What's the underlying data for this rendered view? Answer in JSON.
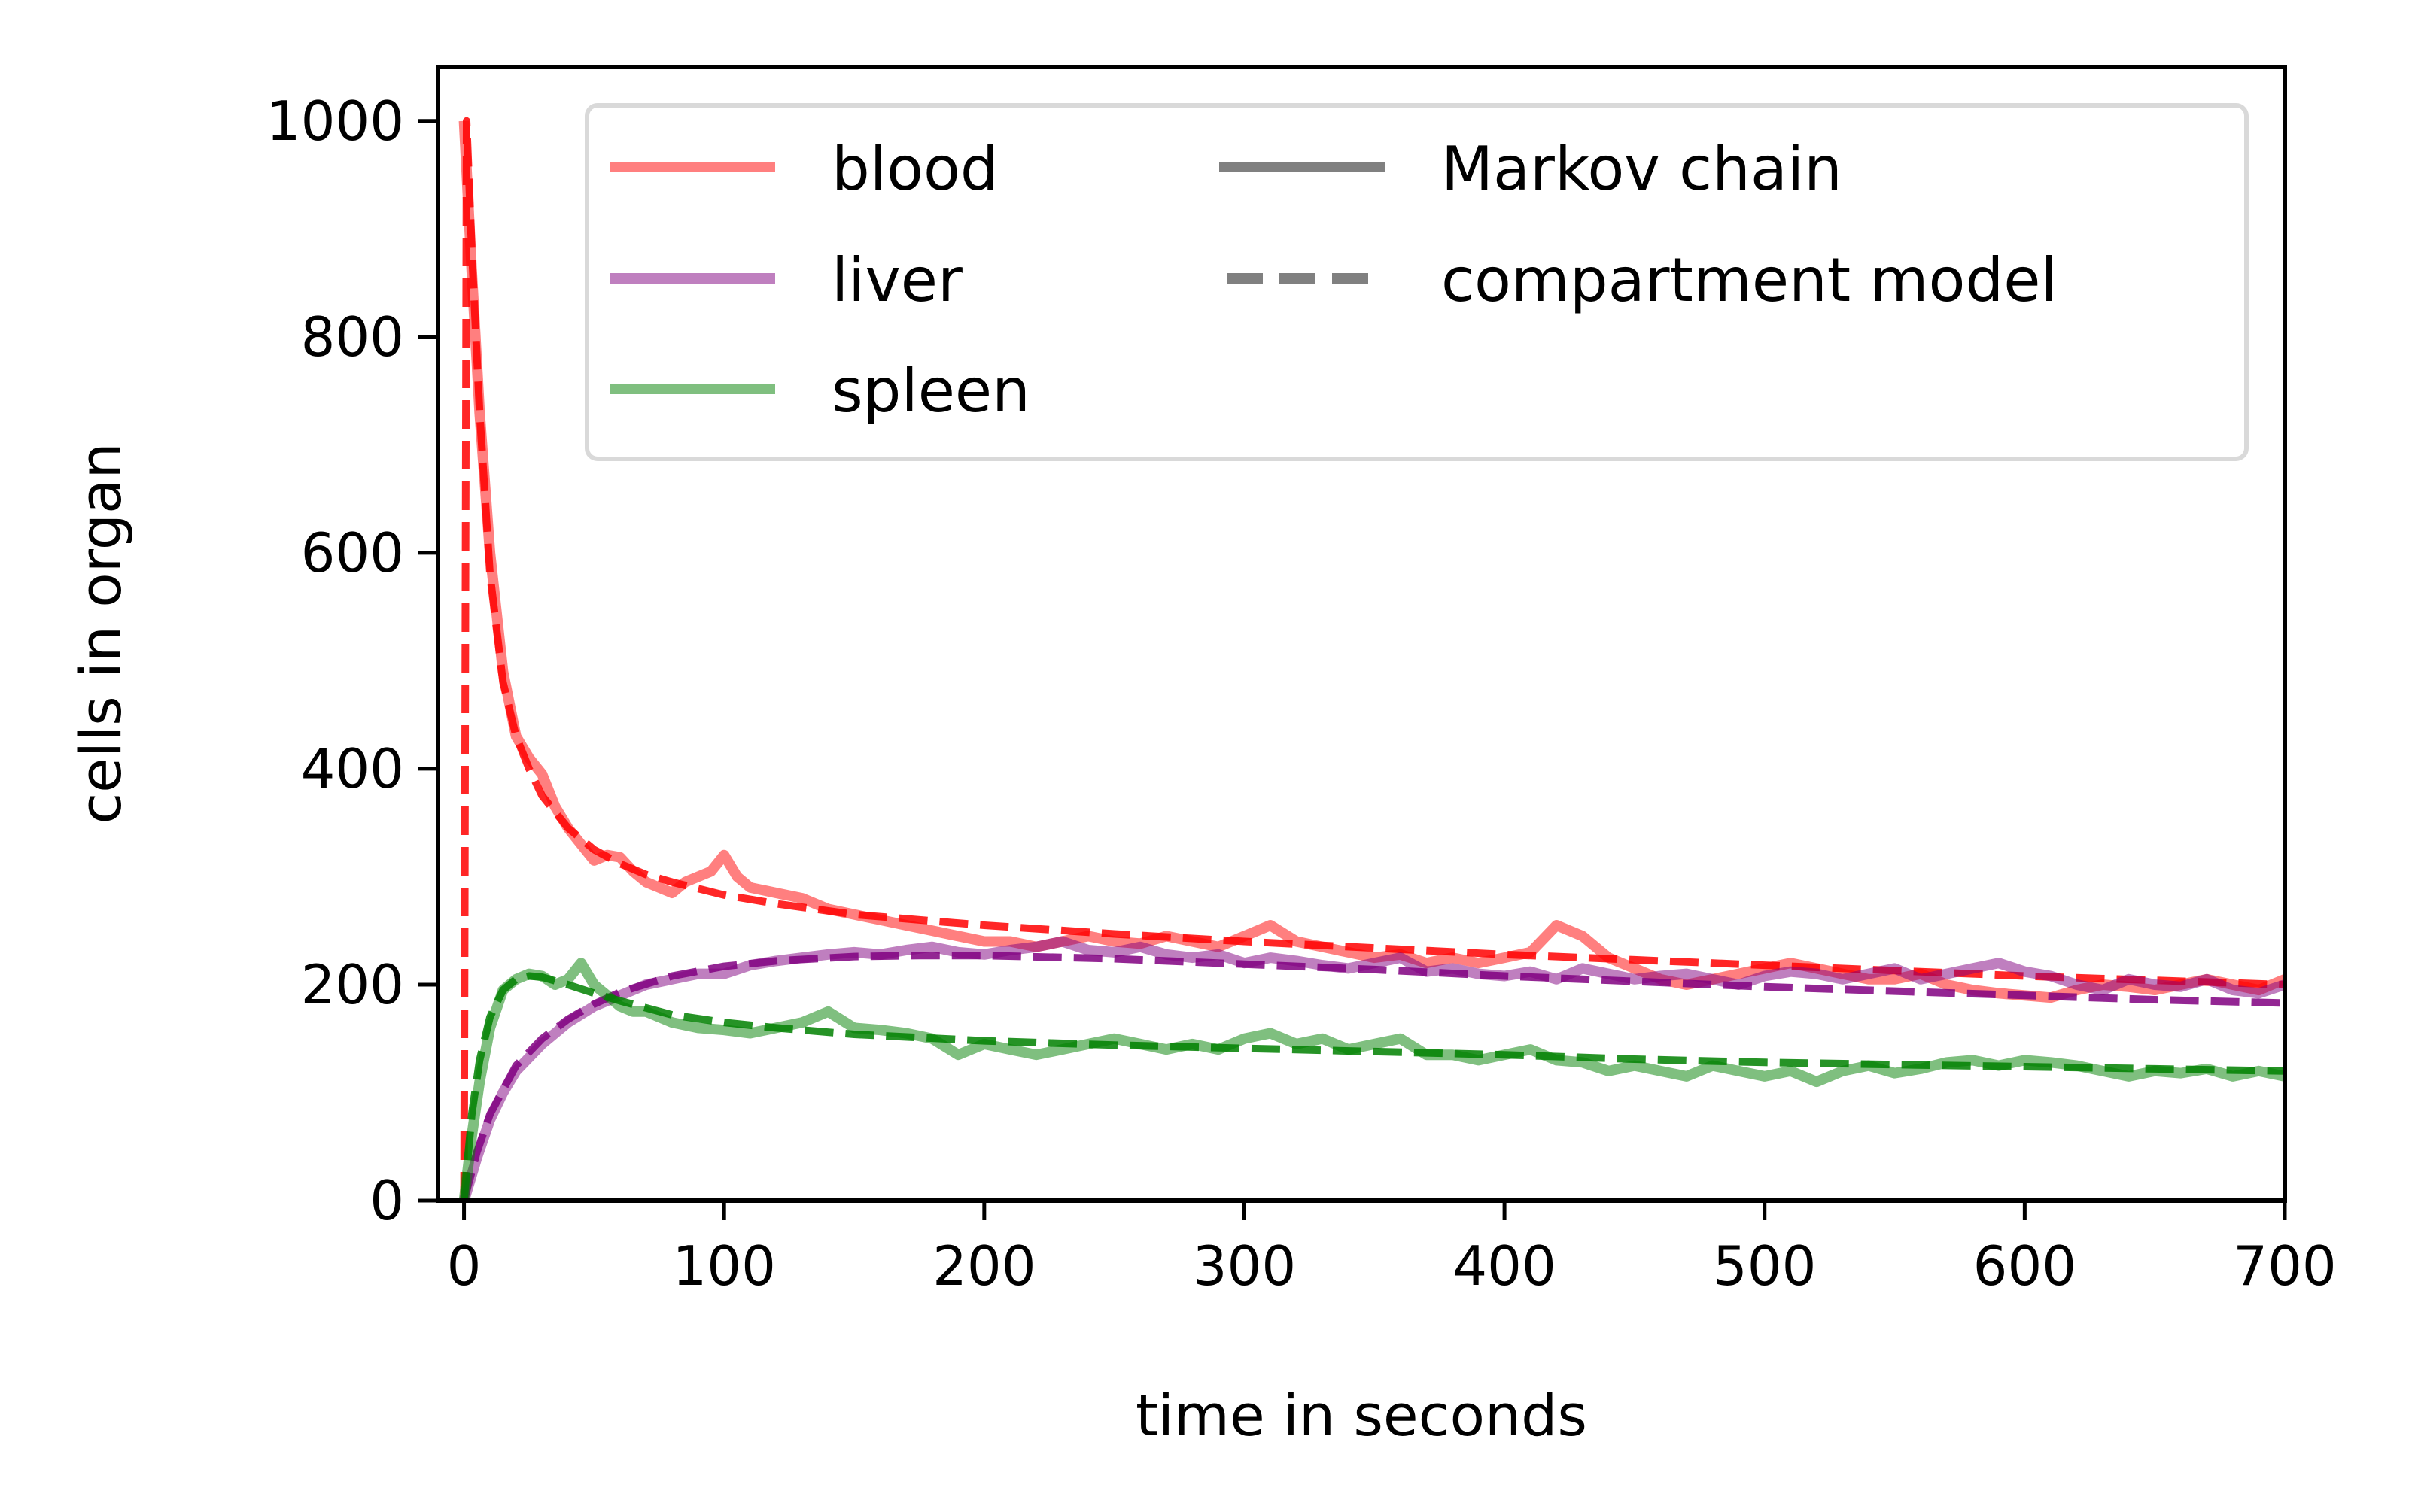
{
  "chart_data": {
    "type": "line",
    "title": "",
    "xlabel": "time in seconds",
    "ylabel": "cells in organ",
    "xlim": [
      -10,
      700
    ],
    "ylim": [
      0,
      1050
    ],
    "xticks": [
      0,
      100,
      200,
      300,
      400,
      500,
      600,
      700
    ],
    "yticks": [
      0,
      200,
      400,
      600,
      800,
      1000
    ],
    "legend_position": "top",
    "series": [
      {
        "name": "blood",
        "kind": "Markov chain",
        "style": "solid",
        "color": "#ff0000",
        "alpha": 0.5,
        "x": [
          0,
          3,
          6,
          10,
          15,
          20,
          25,
          30,
          35,
          40,
          45,
          50,
          55,
          60,
          65,
          70,
          75,
          80,
          85,
          90,
          95,
          100,
          105,
          110,
          120,
          130,
          140,
          150,
          160,
          170,
          180,
          190,
          200,
          210,
          220,
          230,
          240,
          250,
          260,
          270,
          280,
          290,
          300,
          310,
          320,
          330,
          340,
          350,
          360,
          370,
          380,
          390,
          400,
          410,
          420,
          425,
          430,
          440,
          450,
          460,
          470,
          480,
          490,
          500,
          510,
          520,
          530,
          540,
          550,
          560,
          570,
          580,
          590,
          600,
          610,
          620,
          630,
          640,
          650,
          660,
          670,
          680,
          690,
          700
        ],
        "y": [
          1000,
          860,
          730,
          600,
          490,
          430,
          410,
          395,
          365,
          345,
          330,
          315,
          320,
          318,
          305,
          295,
          290,
          285,
          295,
          300,
          305,
          320,
          300,
          290,
          285,
          280,
          270,
          265,
          260,
          255,
          250,
          245,
          240,
          240,
          235,
          240,
          245,
          240,
          238,
          245,
          240,
          235,
          245,
          255,
          240,
          235,
          230,
          225,
          228,
          220,
          225,
          220,
          225,
          230,
          255,
          250,
          245,
          225,
          215,
          205,
          200,
          205,
          210,
          215,
          220,
          215,
          210,
          205,
          205,
          210,
          200,
          195,
          192,
          190,
          188,
          195,
          200,
          198,
          195,
          200,
          205,
          200,
          195,
          205
        ]
      },
      {
        "name": "blood",
        "kind": "compartment model",
        "style": "dashed",
        "color": "#ff0000",
        "alpha": 0.85,
        "x": [
          0,
          1,
          3,
          6,
          10,
          15,
          20,
          25,
          30,
          40,
          50,
          60,
          70,
          80,
          100,
          120,
          150,
          200,
          250,
          300,
          350,
          400,
          450,
          500,
          550,
          600,
          650,
          700
        ],
        "y": [
          0,
          1000,
          880,
          730,
          580,
          480,
          430,
          400,
          375,
          345,
          325,
          312,
          302,
          295,
          283,
          275,
          265,
          255,
          247,
          240,
          234,
          228,
          223,
          218,
          213,
          208,
          204,
          200
        ]
      },
      {
        "name": "liver",
        "kind": "Markov chain",
        "style": "solid",
        "color": "#800080",
        "alpha": 0.5,
        "x": [
          0,
          5,
          10,
          15,
          20,
          30,
          40,
          50,
          60,
          70,
          80,
          90,
          100,
          110,
          120,
          130,
          140,
          150,
          160,
          170,
          180,
          190,
          200,
          210,
          220,
          230,
          240,
          250,
          260,
          270,
          280,
          290,
          300,
          310,
          320,
          330,
          340,
          350,
          360,
          370,
          380,
          390,
          400,
          410,
          420,
          430,
          440,
          450,
          460,
          470,
          480,
          490,
          500,
          510,
          520,
          530,
          540,
          550,
          560,
          570,
          580,
          590,
          600,
          610,
          620,
          630,
          640,
          650,
          660,
          670,
          680,
          690,
          700
        ],
        "y": [
          0,
          40,
          75,
          100,
          120,
          145,
          165,
          180,
          190,
          200,
          205,
          210,
          210,
          218,
          222,
          225,
          228,
          230,
          228,
          232,
          235,
          230,
          228,
          232,
          235,
          240,
          232,
          230,
          235,
          228,
          225,
          228,
          220,
          225,
          222,
          218,
          215,
          220,
          225,
          212,
          215,
          210,
          208,
          212,
          205,
          215,
          210,
          205,
          208,
          210,
          205,
          200,
          208,
          212,
          210,
          205,
          210,
          215,
          205,
          210,
          215,
          220,
          212,
          208,
          200,
          195,
          205,
          200,
          198,
          205,
          195,
          192,
          200
        ]
      },
      {
        "name": "liver",
        "kind": "compartment model",
        "style": "dashed",
        "color": "#800080",
        "alpha": 0.85,
        "x": [
          0,
          5,
          10,
          20,
          30,
          40,
          50,
          60,
          80,
          100,
          120,
          150,
          175,
          200,
          250,
          300,
          350,
          400,
          450,
          500,
          550,
          600,
          650,
          700
        ],
        "y": [
          0,
          45,
          80,
          125,
          150,
          168,
          182,
          193,
          208,
          217,
          222,
          226,
          227,
          227,
          224,
          219,
          214,
          208,
          203,
          198,
          194,
          190,
          186,
          183
        ]
      },
      {
        "name": "spleen",
        "kind": "Markov chain",
        "style": "solid",
        "color": "#008000",
        "alpha": 0.5,
        "x": [
          0,
          3,
          6,
          10,
          15,
          20,
          25,
          30,
          35,
          40,
          45,
          50,
          55,
          60,
          65,
          70,
          80,
          90,
          100,
          110,
          120,
          130,
          140,
          150,
          160,
          170,
          180,
          190,
          200,
          210,
          220,
          230,
          240,
          250,
          260,
          270,
          280,
          290,
          300,
          310,
          320,
          330,
          340,
          350,
          360,
          370,
          380,
          390,
          400,
          410,
          420,
          430,
          440,
          450,
          460,
          470,
          480,
          490,
          500,
          510,
          520,
          530,
          540,
          550,
          560,
          570,
          580,
          590,
          600,
          610,
          620,
          630,
          640,
          650,
          660,
          670,
          680,
          690,
          700
        ],
        "y": [
          0,
          60,
          110,
          160,
          195,
          205,
          210,
          208,
          200,
          205,
          220,
          200,
          190,
          180,
          175,
          175,
          165,
          160,
          158,
          155,
          160,
          165,
          175,
          160,
          158,
          155,
          150,
          135,
          145,
          140,
          135,
          140,
          145,
          150,
          145,
          140,
          145,
          140,
          150,
          155,
          145,
          150,
          140,
          145,
          150,
          135,
          135,
          130,
          135,
          140,
          130,
          128,
          120,
          125,
          120,
          115,
          125,
          120,
          115,
          120,
          110,
          120,
          125,
          118,
          122,
          128,
          130,
          125,
          130,
          128,
          125,
          120,
          115,
          120,
          118,
          122,
          115,
          120,
          115
        ]
      },
      {
        "name": "spleen",
        "kind": "compartment model",
        "style": "dashed",
        "color": "#008000",
        "alpha": 0.85,
        "x": [
          0,
          3,
          6,
          10,
          15,
          20,
          25,
          30,
          40,
          50,
          60,
          80,
          100,
          120,
          150,
          200,
          250,
          300,
          350,
          400,
          450,
          500,
          550,
          600,
          650,
          700
        ],
        "y": [
          0,
          80,
          130,
          170,
          195,
          205,
          208,
          207,
          200,
          192,
          185,
          172,
          165,
          160,
          154,
          148,
          144,
          141,
          138,
          135,
          131,
          128,
          126,
          124,
          122,
          120
        ]
      }
    ],
    "legend": {
      "entries": [
        {
          "label": "blood",
          "color": "#ff0000",
          "style": "solid"
        },
        {
          "label": "liver",
          "color": "#800080",
          "style": "solid"
        },
        {
          "label": "spleen",
          "color": "#008000",
          "style": "solid"
        },
        {
          "label": "Markov chain",
          "color": "#808080",
          "style": "solid"
        },
        {
          "label": "compartment model",
          "color": "#808080",
          "style": "dashed"
        }
      ]
    }
  }
}
